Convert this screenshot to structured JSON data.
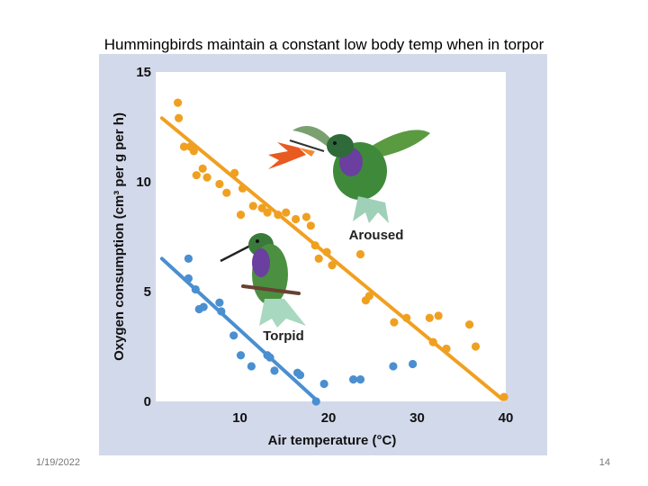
{
  "slide": {
    "title": "Hummingbirds maintain a constant low body temp when in torpor",
    "date": "1/19/2022",
    "page_number": "14"
  },
  "colors": {
    "background": "#d2d9ea",
    "plot_area": "#ffffff",
    "aroused": "#f0a020",
    "torpid": "#4a8fd0"
  },
  "chart_data": {
    "type": "scatter",
    "xlabel": "Air temperature (°C)",
    "ylabel": "Oxygen consumption (cm³ per g per h)",
    "xlim": [
      0.5,
      40
    ],
    "ylim": [
      0,
      15
    ],
    "xticks": [
      "10",
      "20",
      "30",
      "40"
    ],
    "yticks": [
      "0",
      "5",
      "10",
      "15"
    ],
    "grid": false,
    "series": [
      {
        "name": "Aroused",
        "color": "#f0a020",
        "points": [
          [
            3.0,
            13.6
          ],
          [
            3.1,
            12.9
          ],
          [
            3.7,
            11.6
          ],
          [
            4.4,
            11.6
          ],
          [
            4.8,
            11.4
          ],
          [
            5.1,
            10.3
          ],
          [
            5.8,
            10.6
          ],
          [
            6.3,
            10.2
          ],
          [
            7.7,
            9.9
          ],
          [
            8.5,
            9.5
          ],
          [
            9.4,
            10.4
          ],
          [
            10.3,
            9.7
          ],
          [
            10.1,
            8.5
          ],
          [
            11.5,
            8.9
          ],
          [
            12.5,
            8.8
          ],
          [
            13.1,
            8.6
          ],
          [
            14.3,
            8.5
          ],
          [
            15.2,
            8.6
          ],
          [
            16.3,
            8.3
          ],
          [
            17.5,
            8.4
          ],
          [
            18.0,
            8.0
          ],
          [
            18.5,
            7.1
          ],
          [
            18.9,
            6.5
          ],
          [
            19.8,
            6.8
          ],
          [
            20.4,
            6.2
          ],
          [
            23.6,
            6.7
          ],
          [
            24.2,
            4.6
          ],
          [
            24.6,
            4.8
          ],
          [
            27.4,
            3.6
          ],
          [
            28.8,
            3.8
          ],
          [
            31.4,
            3.8
          ],
          [
            32.4,
            3.9
          ],
          [
            31.8,
            2.7
          ],
          [
            33.3,
            2.4
          ],
          [
            35.9,
            3.5
          ],
          [
            36.6,
            2.5
          ],
          [
            39.8,
            0.2
          ]
        ],
        "fit": [
          [
            1.2,
            12.9
          ],
          [
            39.6,
            0.1
          ]
        ]
      },
      {
        "name": "Torpid",
        "color": "#4a8fd0",
        "points": [
          [
            4.2,
            6.5
          ],
          [
            4.2,
            5.6
          ],
          [
            5.0,
            5.1
          ],
          [
            5.4,
            4.2
          ],
          [
            5.9,
            4.3
          ],
          [
            7.7,
            4.5
          ],
          [
            7.9,
            4.1
          ],
          [
            9.3,
            3.0
          ],
          [
            10.1,
            2.1
          ],
          [
            11.3,
            1.6
          ],
          [
            13.1,
            2.1
          ],
          [
            13.4,
            2.0
          ],
          [
            13.9,
            1.4
          ],
          [
            16.5,
            1.3
          ],
          [
            16.8,
            1.2
          ],
          [
            18.6,
            0.0
          ],
          [
            19.5,
            0.8
          ],
          [
            22.8,
            1.0
          ],
          [
            23.6,
            1.0
          ],
          [
            27.3,
            1.6
          ],
          [
            29.5,
            1.7
          ]
        ],
        "fit": [
          [
            1.2,
            6.5
          ],
          [
            18.8,
            0.0
          ]
        ]
      }
    ]
  }
}
